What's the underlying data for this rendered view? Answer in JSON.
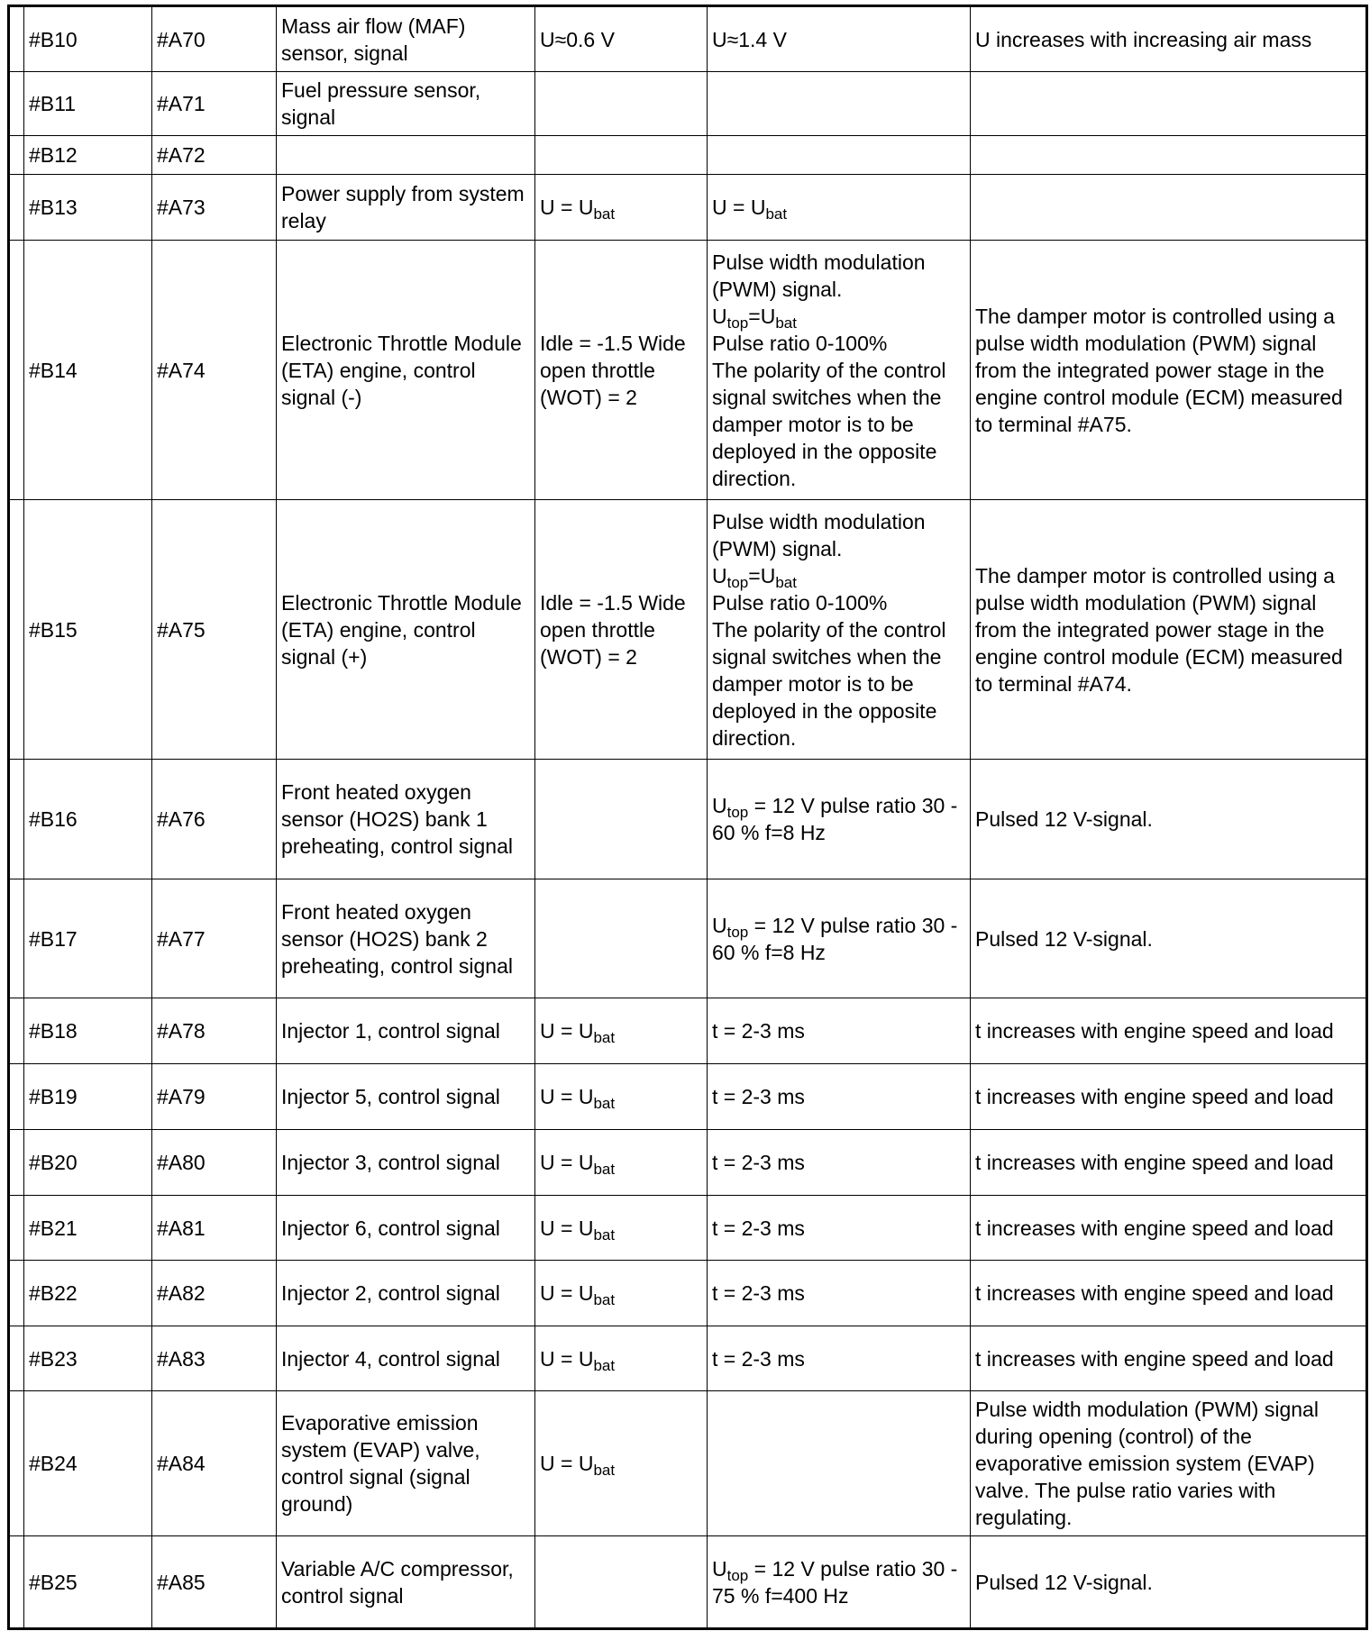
{
  "columns_count": 7,
  "rows": [
    {
      "b": "#B10",
      "a": "#A70",
      "desc": "Mass air flow (MAF) sensor, signal",
      "v1": [
        "U≈0.6 V"
      ],
      "v2": [
        "U≈1.4 V"
      ],
      "note": "U increases with increasing air mass"
    },
    {
      "b": "#B11",
      "a": "#A71",
      "desc": "Fuel pressure sensor, signal",
      "v1": [],
      "v2": [],
      "note": ""
    },
    {
      "b": "#B12",
      "a": "#A72",
      "desc": "",
      "v1": [],
      "v2": [],
      "note": ""
    },
    {
      "b": "#B13",
      "a": "#A73",
      "desc": "Power supply from system relay",
      "v1": [
        "U = U",
        {
          "sub": "bat"
        }
      ],
      "v2": [
        "U = U",
        {
          "sub": "bat"
        }
      ],
      "note": ""
    },
    {
      "b": "#B14",
      "a": "#A74",
      "desc": "Electronic Throttle Module (ETA) engine, control signal (-)",
      "v1": [
        "Idle = -1.5 Wide open throttle (WOT) = 2"
      ],
      "v2": [
        "Pulse width modulation (PWM) signal.",
        {
          "br": 1
        },
        "U",
        {
          "sub": "top"
        },
        "=U",
        {
          "sub": "bat"
        },
        {
          "br": 1
        },
        "Pulse ratio 0-100%",
        {
          "br": 1
        },
        "The polarity of the control signal switches when the damper motor is to be deployed in the opposite direction."
      ],
      "note": "The damper motor is controlled using a pulse width modulation (PWM) signal from the integrated power stage in the engine control module (ECM) measured to terminal #A75."
    },
    {
      "b": "#B15",
      "a": "#A75",
      "desc": "Electronic Throttle Module (ETA) engine, control signal (+)",
      "v1": [
        "Idle = -1.5 Wide open throttle (WOT) = 2"
      ],
      "v2": [
        "Pulse width modulation (PWM) signal.",
        {
          "br": 1
        },
        "U",
        {
          "sub": "top"
        },
        "=U",
        {
          "sub": "bat"
        },
        {
          "br": 1
        },
        "Pulse ratio 0-100%",
        {
          "br": 1
        },
        "The polarity of the control signal switches when the damper motor is to be deployed in the opposite direction."
      ],
      "note": "The damper motor is controlled using a pulse width modulation (PWM) signal from the integrated power stage in the engine control module (ECM) measured to terminal #A74."
    },
    {
      "b": "#B16",
      "a": "#A76",
      "desc": "Front heated oxygen sensor (HO2S) bank 1 preheating, control signal",
      "v1": [],
      "v2": [
        "U",
        {
          "sub": "top"
        },
        " = 12 V pulse ratio 30 - 60 % f=8 Hz"
      ],
      "note": "Pulsed 12 V-signal."
    },
    {
      "b": "#B17",
      "a": "#A77",
      "desc": "Front heated oxygen sensor (HO2S) bank 2 preheating, control signal",
      "v1": [],
      "v2": [
        "U",
        {
          "sub": "top"
        },
        " = 12 V pulse ratio 30 - 60 % f=8 Hz"
      ],
      "note": "Pulsed 12 V-signal."
    },
    {
      "b": "#B18",
      "a": "#A78",
      "desc": "Injector 1, control signal",
      "v1": [
        "U = U",
        {
          "sub": "bat"
        }
      ],
      "v2": [
        "t = 2-3 ms"
      ],
      "note": "t increases with engine speed and load"
    },
    {
      "b": "#B19",
      "a": "#A79",
      "desc": "Injector 5, control signal",
      "v1": [
        "U = U",
        {
          "sub": "bat"
        }
      ],
      "v2": [
        "t = 2-3 ms"
      ],
      "note": "t increases with engine speed and load"
    },
    {
      "b": "#B20",
      "a": "#A80",
      "desc": "Injector 3, control signal",
      "v1": [
        "U = U",
        {
          "sub": "bat"
        }
      ],
      "v2": [
        "t = 2-3 ms"
      ],
      "note": "t increases with engine speed and load"
    },
    {
      "b": "#B21",
      "a": "#A81",
      "desc": "Injector 6, control signal",
      "v1": [
        "U = U",
        {
          "sub": "bat"
        }
      ],
      "v2": [
        "t = 2-3 ms"
      ],
      "note": "t increases with engine speed and load"
    },
    {
      "b": "#B22",
      "a": "#A82",
      "desc": "Injector 2, control signal",
      "v1": [
        "U = U",
        {
          "sub": "bat"
        }
      ],
      "v2": [
        "t = 2-3 ms"
      ],
      "note": "t increases with engine speed and load"
    },
    {
      "b": "#B23",
      "a": "#A83",
      "desc": "Injector 4, control signal",
      "v1": [
        "U = U",
        {
          "sub": "bat"
        }
      ],
      "v2": [
        "t = 2-3 ms"
      ],
      "note": "t increases with engine speed and load"
    },
    {
      "b": "#B24",
      "a": "#A84",
      "desc": "Evaporative emission system (EVAP) valve, control signal (signal ground)",
      "v1": [
        "U = U",
        {
          "sub": "bat"
        }
      ],
      "v2": [],
      "note": "Pulse width modulation (PWM) signal during opening (control) of the evaporative emission system (EVAP) valve. The pulse ratio varies with regulating."
    },
    {
      "b": "#B25",
      "a": "#A85",
      "desc": "Variable A/C compressor, control signal",
      "v1": [],
      "v2": [
        "U",
        {
          "sub": "top"
        },
        " = 12 V pulse ratio 30 - 75 % f=400 Hz"
      ],
      "note": "Pulsed 12 V-signal."
    }
  ]
}
